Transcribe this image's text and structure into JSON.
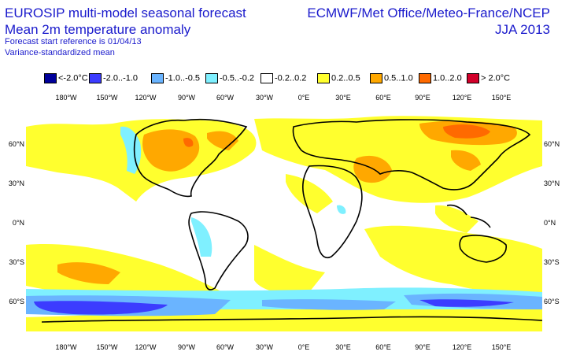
{
  "header": {
    "title_line1": "EUROSIP multi-model seasonal forecast",
    "title_line2": "Mean 2m temperature anomaly",
    "start_reference": "Forecast start reference is 01/04/13",
    "normalization": "Variance-standardized mean",
    "centres": "ECMWF/Met Office/Meteo-France/NCEP",
    "season": "JJA 2013"
  },
  "legend": [
    {
      "label": "<-2.0°C",
      "color": "#00009a"
    },
    {
      "label": "-2.0..-1.0",
      "color": "#3c3cff"
    },
    {
      "label": "-1.0..-0.5",
      "color": "#6ab4ff"
    },
    {
      "label": "-0.5..-0.2",
      "color": "#7ff0ff"
    },
    {
      "label": "-0.2..0.2",
      "color": "#ffffff"
    },
    {
      "label": "0.2..0.5",
      "color": "#ffff2e"
    },
    {
      "label": "0.5..1.0",
      "color": "#ffa800"
    },
    {
      "label": "1.0..2.0",
      "color": "#ff6a00"
    },
    {
      "label": "> 2.0°C",
      "color": "#d2002a"
    }
  ],
  "axes": {
    "lon_labels_top": [
      "180°W",
      "150°W",
      "120°W",
      "90°W",
      "60°W",
      "30°W",
      "0°E",
      "30°E",
      "60°E",
      "90°E",
      "120°E",
      "150°E"
    ],
    "lon_labels_bottom": [
      "180°W",
      "150°W",
      "120°W",
      "90°W",
      "60°W",
      "30°W",
      "0°E",
      "30°E",
      "60°E",
      "90°E",
      "120°E",
      "150°E"
    ],
    "lat_labels": [
      "60°N",
      "30°N",
      "0°N",
      "30°S",
      "60°S"
    ]
  }
}
